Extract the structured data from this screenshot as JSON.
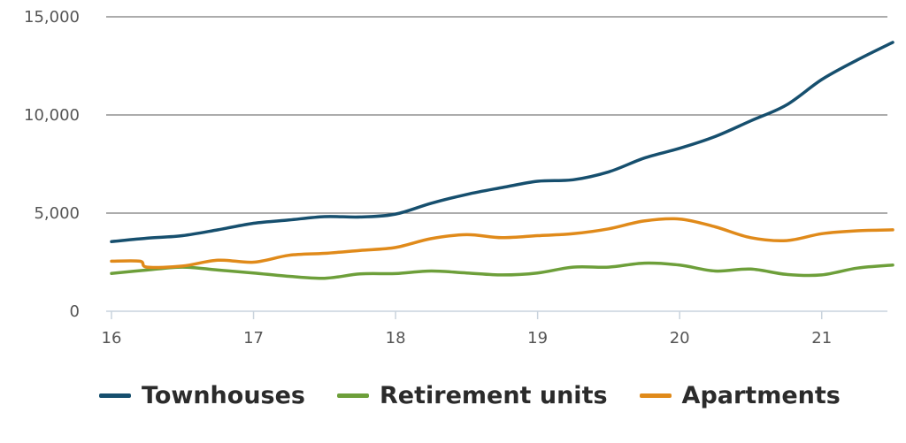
{
  "chart_data": {
    "type": "line",
    "title": "",
    "xlabel": "",
    "ylabel": "",
    "xlim": [
      16,
      21.5
    ],
    "ylim": [
      0,
      15000
    ],
    "x_ticks": [
      16,
      17,
      18,
      19,
      20,
      21
    ],
    "x_tick_labels": [
      "16",
      "17",
      "18",
      "19",
      "20",
      "21"
    ],
    "y_ticks": [
      0,
      5000,
      10000,
      15000
    ],
    "y_tick_labels": [
      "0",
      "5,000",
      "10,000",
      "15,000"
    ],
    "grid": "horizontal",
    "legend_position": "bottom",
    "series": [
      {
        "name": "Townhouses",
        "color": "#164f6e",
        "points": [
          [
            16.0,
            3550
          ],
          [
            16.25,
            3720
          ],
          [
            16.5,
            3850
          ],
          [
            16.75,
            4150
          ],
          [
            17.0,
            4480
          ],
          [
            17.25,
            4650
          ],
          [
            17.5,
            4820
          ],
          [
            17.75,
            4800
          ],
          [
            18.0,
            4950
          ],
          [
            18.25,
            5500
          ],
          [
            18.5,
            5950
          ],
          [
            18.75,
            6300
          ],
          [
            19.0,
            6620
          ],
          [
            19.25,
            6700
          ],
          [
            19.5,
            7100
          ],
          [
            19.75,
            7800
          ],
          [
            20.0,
            8300
          ],
          [
            20.25,
            8900
          ],
          [
            20.5,
            9700
          ],
          [
            20.75,
            10500
          ],
          [
            21.0,
            11800
          ],
          [
            21.25,
            12800
          ],
          [
            21.5,
            13700
          ]
        ]
      },
      {
        "name": "Retirement units",
        "color": "#6d9f3a",
        "points": [
          [
            16.0,
            1930
          ],
          [
            16.25,
            2100
          ],
          [
            16.5,
            2250
          ],
          [
            16.75,
            2100
          ],
          [
            17.0,
            1950
          ],
          [
            17.25,
            1780
          ],
          [
            17.5,
            1680
          ],
          [
            17.75,
            1900
          ],
          [
            18.0,
            1920
          ],
          [
            18.25,
            2050
          ],
          [
            18.5,
            1950
          ],
          [
            18.75,
            1850
          ],
          [
            19.0,
            1950
          ],
          [
            19.25,
            2250
          ],
          [
            19.5,
            2250
          ],
          [
            19.75,
            2450
          ],
          [
            20.0,
            2350
          ],
          [
            20.25,
            2050
          ],
          [
            20.5,
            2150
          ],
          [
            20.75,
            1880
          ],
          [
            21.0,
            1850
          ],
          [
            21.25,
            2200
          ],
          [
            21.5,
            2350
          ]
        ]
      },
      {
        "name": "Apartments",
        "color": "#e08a1a",
        "points": [
          [
            16.0,
            2550
          ],
          [
            16.2,
            2550
          ],
          [
            16.25,
            2250
          ],
          [
            16.5,
            2300
          ],
          [
            16.75,
            2600
          ],
          [
            17.0,
            2500
          ],
          [
            17.25,
            2850
          ],
          [
            17.5,
            2950
          ],
          [
            17.75,
            3100
          ],
          [
            18.0,
            3250
          ],
          [
            18.25,
            3700
          ],
          [
            18.5,
            3900
          ],
          [
            18.75,
            3750
          ],
          [
            19.0,
            3850
          ],
          [
            19.25,
            3950
          ],
          [
            19.5,
            4200
          ],
          [
            19.75,
            4600
          ],
          [
            20.0,
            4700
          ],
          [
            20.25,
            4300
          ],
          [
            20.5,
            3750
          ],
          [
            20.75,
            3600
          ],
          [
            21.0,
            3950
          ],
          [
            21.25,
            4100
          ],
          [
            21.5,
            4150
          ]
        ]
      }
    ]
  }
}
